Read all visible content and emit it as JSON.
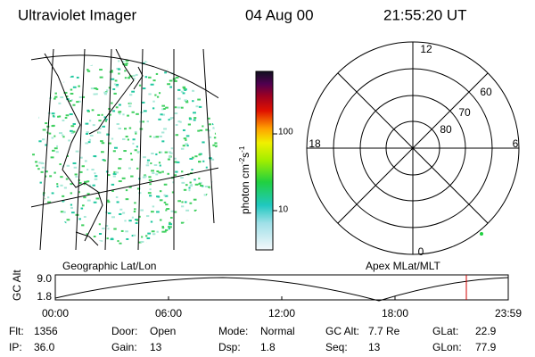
{
  "header": {
    "title": "Ultraviolet Imager",
    "date": "04 Aug 00",
    "time": "21:55:20 UT"
  },
  "colorbar": {
    "unit": "photon cm",
    "exp1": "-2",
    "unit2": "s",
    "exp2": "-1",
    "ticks": [
      "100",
      "10"
    ]
  },
  "map": {
    "caption": "Geographic Lat/Lon"
  },
  "polar": {
    "caption": "Apex MLat/MLT",
    "mlt_labels": [
      "12",
      "18",
      "6",
      "0"
    ],
    "lat_labels": [
      "60",
      "70",
      "80"
    ]
  },
  "altitude": {
    "label": "GC Alt",
    "yticks": [
      "9.0",
      "1.8"
    ],
    "xticks": [
      "00:00",
      "06:00",
      "12:00",
      "18:00",
      "23:59"
    ]
  },
  "footer": {
    "rows": [
      [
        [
          "Flt:",
          "1356"
        ],
        [
          "Door:",
          "Open"
        ],
        [
          "Mode:",
          "Normal"
        ],
        [
          "GC Alt:",
          "7.7 Re"
        ],
        [
          "GLat:",
          "22.9"
        ]
      ],
      [
        [
          "IP:",
          "36.0"
        ],
        [
          "Gain:",
          "13"
        ],
        [
          "Dsp:",
          "1.8"
        ],
        [
          "Seq:",
          "13"
        ],
        [
          "GLon:",
          "77.9"
        ]
      ]
    ]
  }
}
